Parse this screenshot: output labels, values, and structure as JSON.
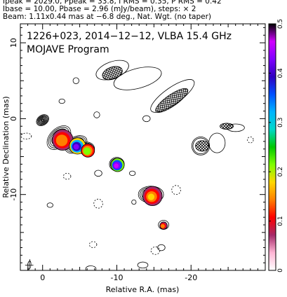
{
  "header": {
    "line1": "Ipeak = 2029.0, Ppeak = 33.8, I RMS = 0.35, P RMS = 0.42",
    "line2": "Ibase = 10.00, Pbase = 2.96 (mJy/beam), steps: × 2",
    "line3": "Beam: 1.11x0.44 mas at −6.8 deg., Nat. Wgt. (no taper)"
  },
  "chart_data": {
    "type": "heatmap",
    "title": "1226+023, 2014−12−12, VLBA 15.4 GHz",
    "subtitle": "MOJAVE Program",
    "xlabel": "Relative R.A. (mas)",
    "ylabel": "Relative Declination (mas)",
    "xlim": [
      3,
      -30
    ],
    "ylim": [
      -20,
      12.5
    ],
    "x_ticks": [
      0,
      -10,
      -20
    ],
    "y_ticks": [
      10,
      0,
      -10
    ],
    "colorbar": {
      "range": [
        0,
        0.5
      ],
      "ticks": [
        "0",
        "0.1",
        "0.2",
        "0.3",
        "0.4",
        "0.5"
      ],
      "colors": [
        "#ffffff",
        "#ffb6d5",
        "#a52a6a",
        "#ff0000",
        "#ff7f00",
        "#ffd700",
        "#7fff00",
        "#00c800",
        "#00d8c8",
        "#00b4ff",
        "#0050ff",
        "#3000c0",
        "#8000ff",
        "#d000ff",
        "#000000"
      ]
    },
    "contour_sources": [
      {
        "x": 0.0,
        "y": -0.2,
        "rx": 0.9,
        "ry": 0.65,
        "angle": -35,
        "levels": 9
      },
      {
        "x": -2.2,
        "y": -2.5,
        "rx": 1.9,
        "ry": 1.2,
        "angle": -45,
        "levels": 6
      },
      {
        "x": -4.5,
        "y": -3.4,
        "rx": 1.6,
        "ry": 1.0,
        "angle": -30,
        "levels": 4
      },
      {
        "x": -6.0,
        "y": -4.0,
        "rx": 1.0,
        "ry": 0.9,
        "angle": 0,
        "levels": 3
      },
      {
        "x": -10.0,
        "y": -6.0,
        "rx": 1.0,
        "ry": 0.9,
        "angle": 0,
        "levels": 3
      },
      {
        "x": -14.6,
        "y": -10.0,
        "rx": 1.7,
        "ry": 1.1,
        "angle": 0,
        "levels": 3
      },
      {
        "x": -16.3,
        "y": -14.0,
        "rx": 0.7,
        "ry": 0.6,
        "angle": 0,
        "levels": 1
      },
      {
        "x": -9.4,
        "y": 6.4,
        "rx": 2.3,
        "ry": 1.1,
        "angle": -20,
        "levels": 1
      },
      {
        "x": -12.8,
        "y": 5.3,
        "rx": 3.3,
        "ry": 1.3,
        "angle": -15,
        "levels": 1
      },
      {
        "x": -17.5,
        "y": 3.0,
        "rx": 3.5,
        "ry": 1.1,
        "angle": -35,
        "levels": 1
      },
      {
        "x": -21.3,
        "y": -3.6,
        "rx": 1.2,
        "ry": 1.2,
        "angle": 0,
        "levels": 2
      },
      {
        "x": -23.5,
        "y": -3.2,
        "rx": 1.1,
        "ry": 1.3,
        "angle": 0,
        "levels": 1
      },
      {
        "x": -26.0,
        "y": -1.2,
        "rx": 1.2,
        "ry": 0.5,
        "angle": 0,
        "levels": 1
      }
    ],
    "polarization_spots": [
      {
        "x": -2.7,
        "y": -2.8,
        "r": 1.4,
        "value": 0.14
      },
      {
        "x": -4.7,
        "y": -3.6,
        "r": 1.1,
        "value": 0.39
      },
      {
        "x": -6.1,
        "y": -4.2,
        "r": 0.9,
        "value": 0.2
      },
      {
        "x": -10.1,
        "y": -6.1,
        "r": 0.9,
        "value": 0.43
      },
      {
        "x": -14.8,
        "y": -10.2,
        "r": 1.3,
        "value": 0.15
      },
      {
        "x": -16.3,
        "y": -14.1,
        "r": 0.5,
        "value": 0.14
      }
    ],
    "hatched_regions": [
      {
        "x": -9.4,
        "y": 6.0,
        "rx": 1.4,
        "ry": 0.8,
        "angle": -20
      },
      {
        "x": -17.4,
        "y": 2.4,
        "rx": 2.6,
        "ry": 0.75,
        "angle": -35
      },
      {
        "x": -21.5,
        "y": -3.6,
        "rx": 0.9,
        "ry": 0.7,
        "angle": 0
      },
      {
        "x": -24.8,
        "y": -1.0,
        "rx": 0.9,
        "ry": 0.4,
        "angle": 0
      }
    ],
    "negative_contours": [
      {
        "x": 2.2,
        "y": -2.3,
        "rx": 0.7,
        "ry": 0.4
      },
      {
        "x": -3.3,
        "y": -7.6,
        "rx": 0.5,
        "ry": 0.4
      },
      {
        "x": -7.5,
        "y": -11.2,
        "rx": 0.6,
        "ry": 0.6
      },
      {
        "x": -18.0,
        "y": -9.4,
        "rx": 0.6,
        "ry": 0.6
      },
      {
        "x": -6.8,
        "y": -16.6,
        "rx": 0.5,
        "ry": 0.4
      },
      {
        "x": -15.2,
        "y": -17.4,
        "rx": 0.6,
        "ry": 0.5
      },
      {
        "x": -28.0,
        "y": -2.8,
        "rx": 0.4,
        "ry": 0.4
      }
    ],
    "small_positive_contours": [
      {
        "x": 4.2,
        "y": -8.9,
        "rx": 0.3,
        "ry": 0.4
      },
      {
        "x": -1.0,
        "y": -11.4,
        "rx": 0.4,
        "ry": 0.3
      },
      {
        "x": -7.5,
        "y": -7.2,
        "rx": 0.5,
        "ry": 0.4
      },
      {
        "x": -12.1,
        "y": -7.2,
        "rx": 0.4,
        "ry": 0.3
      },
      {
        "x": -12.3,
        "y": -11.0,
        "rx": 0.3,
        "ry": 0.3
      },
      {
        "x": -6.5,
        "y": -19.8,
        "rx": 0.7,
        "ry": 0.4
      },
      {
        "x": -13.5,
        "y": -19.3,
        "rx": 0.7,
        "ry": 0.4
      },
      {
        "x": -16.0,
        "y": -17.0,
        "rx": 0.5,
        "ry": 0.4
      },
      {
        "x": -7.3,
        "y": 0.5,
        "rx": 0.4,
        "ry": 0.4
      },
      {
        "x": -4.5,
        "y": 5.0,
        "rx": 0.4,
        "ry": 0.4
      },
      {
        "x": -14.0,
        "y": 0.0,
        "rx": 0.5,
        "ry": 0.4
      },
      {
        "x": -2.6,
        "y": 2.3,
        "rx": 0.4,
        "ry": 0.3
      }
    ],
    "beam": {
      "x": 1.8,
      "y": -19.3,
      "major": 1.11,
      "minor": 0.44,
      "pa": -6.8
    }
  }
}
